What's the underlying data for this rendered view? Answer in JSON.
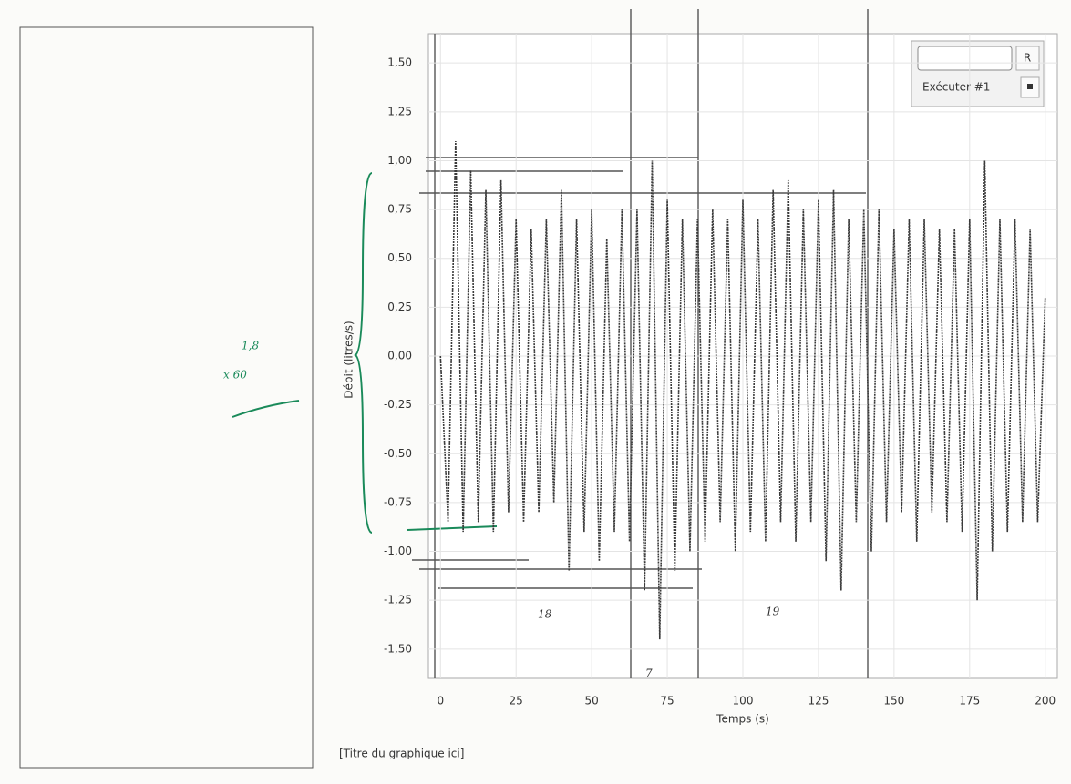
{
  "chart_data": {
    "type": "line",
    "title": "[Titre du graphique ici]",
    "x_label": "Temps (s)",
    "y_label": "Débit (litres/s)",
    "x": [
      0,
      2.5,
      5,
      7.5,
      10,
      12.5,
      15,
      17.5,
      20,
      22.5,
      25,
      27.5,
      30,
      32.5,
      35,
      37.5,
      40,
      42.5,
      45,
      47.5,
      50,
      52.5,
      55,
      57.5,
      60,
      62.5,
      65,
      67.5,
      70,
      72.5,
      75,
      77.5,
      80,
      82.5,
      85,
      87.5,
      90,
      92.5,
      95,
      97.5,
      100,
      102.5,
      105,
      107.5,
      110,
      112.5,
      115,
      117.5,
      120,
      122.5,
      125,
      127.5,
      130,
      132.5,
      135,
      137.5,
      140,
      142.5,
      145,
      147.5,
      150,
      152.5,
      155,
      157.5,
      160,
      162.5,
      165,
      167.5,
      170,
      172.5,
      175,
      177.5,
      180,
      182.5,
      185,
      187.5,
      190,
      192.5,
      195,
      197.5,
      200
    ],
    "series": [
      {
        "name": "Exécuter #1",
        "color": "#3a3a3a",
        "values": [
          0,
          -0.85,
          1.1,
          -0.9,
          0.95,
          -0.85,
          0.85,
          -0.9,
          0.9,
          -0.8,
          0.7,
          -0.85,
          0.65,
          -0.8,
          0.7,
          -0.75,
          0.85,
          -1.1,
          0.7,
          -0.9,
          0.75,
          -1.05,
          0.6,
          -0.9,
          0.75,
          -0.95,
          0.75,
          -1.2,
          1.0,
          -1.45,
          0.8,
          -1.1,
          0.7,
          -1.0,
          0.7,
          -0.95,
          0.75,
          -0.85,
          0.7,
          -1.0,
          0.8,
          -0.9,
          0.7,
          -0.95,
          0.85,
          -0.85,
          0.9,
          -0.95,
          0.75,
          -0.85,
          0.8,
          -1.05,
          0.85,
          -1.2,
          0.7,
          -0.85,
          0.75,
          -1.0,
          0.75,
          -0.85,
          0.65,
          -0.8,
          0.7,
          -0.95,
          0.7,
          -0.8,
          0.65,
          -0.85,
          0.65,
          -0.9,
          0.7,
          -1.25,
          1.0,
          -1.0,
          0.7,
          -0.9,
          0.7,
          -0.85,
          0.65,
          -0.85,
          0.3
        ]
      }
    ],
    "xlim": [
      -4,
      204
    ],
    "ylim": [
      -1.65,
      1.65
    ],
    "xticks": [
      0,
      25,
      50,
      75,
      100,
      125,
      150,
      175,
      200
    ],
    "yticks": [
      {
        "value": 1.5,
        "label": "1,50"
      },
      {
        "value": 1.25,
        "label": "1,25"
      },
      {
        "value": 1,
        "label": "1,00"
      },
      {
        "value": 0.75,
        "label": "0,75"
      },
      {
        "value": 0.5,
        "label": "0,50"
      },
      {
        "value": 0.25,
        "label": "0,25"
      },
      {
        "value": 0,
        "label": "0,00"
      },
      {
        "value": -0.25,
        "label": "-0,25"
      },
      {
        "value": -0.5,
        "label": "-0,50"
      },
      {
        "value": -0.75,
        "label": "-0,75"
      },
      {
        "value": -1,
        "label": "-1,00"
      },
      {
        "value": -1.25,
        "label": "-1,25"
      },
      {
        "value": -1.5,
        "label": "-1,50"
      }
    ],
    "grid": true,
    "annotations": [
      "18",
      "19",
      "7"
    ]
  },
  "controls": {
    "reset": "R",
    "run": "Exécuter #1"
  },
  "notes": [
    "x 60",
    "1,8"
  ]
}
